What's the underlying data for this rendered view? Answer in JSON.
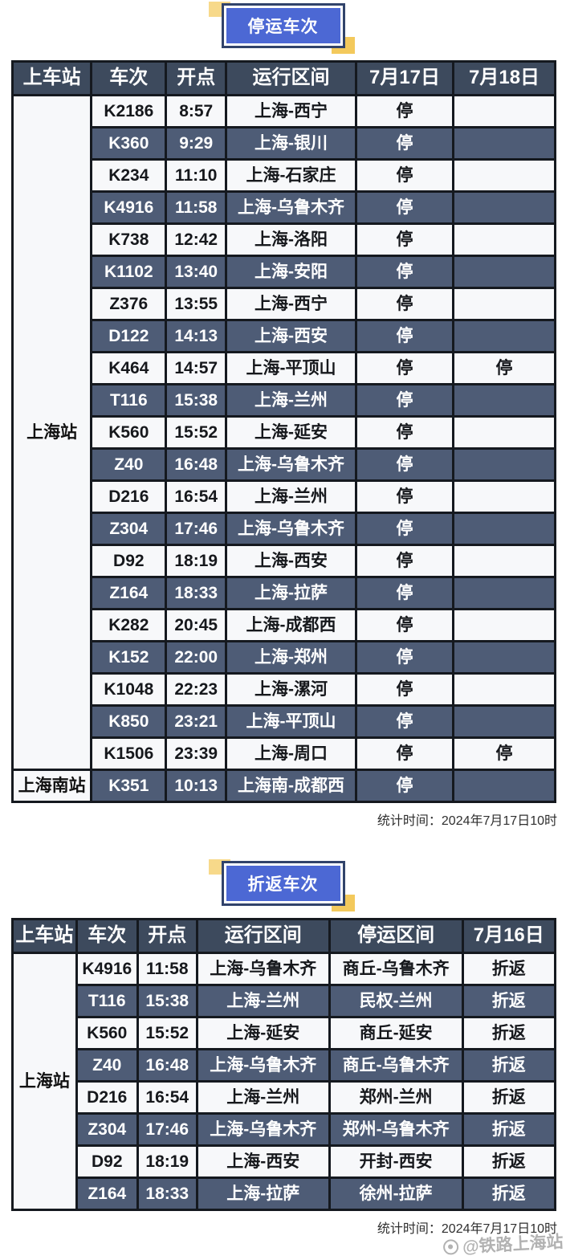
{
  "colors": {
    "badge_blue": "#4c68d4",
    "badge_border": "#31436b",
    "accent_yellow": "#f3c95c",
    "accent_yellow_light": "#f7d98a",
    "table_header_bg": "#3d4a5d",
    "row_dark_bg": "#4e5c76",
    "row_light_bg": "#f7f8fa",
    "table_border": "#15191f",
    "watermark_gray": "#a0a0a0"
  },
  "sections": [
    {
      "badge_label": "停运车次",
      "stat_time": "统计时间：2024年7月17日10时",
      "table": {
        "headers": [
          "上车站",
          "车次",
          "开点",
          "运行区间",
          "7月17日",
          "7月18日"
        ],
        "col_widths": [
          "14.4%",
          "13.6%",
          "10.7%",
          "24.4%",
          "18.0%",
          "18.9%"
        ],
        "groups": [
          {
            "station": "上海站",
            "rows": [
              [
                "K2186",
                "8:57",
                "上海-西宁",
                "停",
                ""
              ],
              [
                "K360",
                "9:29",
                "上海-银川",
                "停",
                ""
              ],
              [
                "K234",
                "11:10",
                "上海-石家庄",
                "停",
                ""
              ],
              [
                "K4916",
                "11:58",
                "上海-乌鲁木齐",
                "停",
                ""
              ],
              [
                "K738",
                "12:42",
                "上海-洛阳",
                "停",
                ""
              ],
              [
                "K1102",
                "13:40",
                "上海-安阳",
                "停",
                ""
              ],
              [
                "Z376",
                "13:55",
                "上海-西宁",
                "停",
                ""
              ],
              [
                "D122",
                "14:13",
                "上海-西安",
                "停",
                ""
              ],
              [
                "K464",
                "14:57",
                "上海-平顶山",
                "停",
                "停"
              ],
              [
                "T116",
                "15:38",
                "上海-兰州",
                "停",
                ""
              ],
              [
                "K560",
                "15:52",
                "上海-延安",
                "停",
                ""
              ],
              [
                "Z40",
                "16:48",
                "上海-乌鲁木齐",
                "停",
                ""
              ],
              [
                "D216",
                "16:54",
                "上海-兰州",
                "停",
                ""
              ],
              [
                "Z304",
                "17:46",
                "上海-乌鲁木齐",
                "停",
                ""
              ],
              [
                "D92",
                "18:19",
                "上海-西安",
                "停",
                ""
              ],
              [
                "Z164",
                "18:33",
                "上海-拉萨",
                "停",
                ""
              ],
              [
                "K282",
                "20:45",
                "上海-成都西",
                "停",
                ""
              ],
              [
                "K152",
                "22:00",
                "上海-郑州",
                "停",
                ""
              ],
              [
                "K1048",
                "22:23",
                "上海-漯河",
                "停",
                ""
              ],
              [
                "K850",
                "23:21",
                "上海-平顶山",
                "停",
                ""
              ],
              [
                "K1506",
                "23:39",
                "上海-周口",
                "停",
                "停"
              ]
            ]
          },
          {
            "station": "上海南站",
            "rows": [
              [
                "K351",
                "10:13",
                "上海南-成都西",
                "停",
                ""
              ]
            ]
          }
        ]
      }
    },
    {
      "badge_label": "折返车次",
      "stat_time": "统计时间：2024年7月17日10时",
      "table": {
        "headers": [
          "上车站",
          "车次",
          "开点",
          "运行区间",
          "停运区间",
          "7月16日"
        ],
        "col_widths": [
          "11.5%",
          "10.9%",
          "10.6%",
          "24.9%",
          "25.0%",
          "17.1%"
        ],
        "groups": [
          {
            "station": "上海站",
            "rows": [
              [
                "K4916",
                "11:58",
                "上海-乌鲁木齐",
                "商丘-乌鲁木齐",
                "折返"
              ],
              [
                "T116",
                "15:38",
                "上海-兰州",
                "民权-兰州",
                "折返"
              ],
              [
                "K560",
                "15:52",
                "上海-延安",
                "商丘-延安",
                "折返"
              ],
              [
                "Z40",
                "16:48",
                "上海-乌鲁木齐",
                "商丘-乌鲁木齐",
                "折返"
              ],
              [
                "D216",
                "16:54",
                "上海-兰州",
                "郑州-兰州",
                "折返"
              ],
              [
                "Z304",
                "17:46",
                "上海-乌鲁木齐",
                "郑州-乌鲁木齐",
                "折返"
              ],
              [
                "D92",
                "18:19",
                "上海-西安",
                "开封-西安",
                "折返"
              ],
              [
                "Z164",
                "18:33",
                "上海-拉萨",
                "徐州-拉萨",
                "折返"
              ]
            ]
          }
        ]
      }
    }
  ],
  "watermark": {
    "icon": "weibo-icon",
    "handle": "@铁路上海站"
  }
}
